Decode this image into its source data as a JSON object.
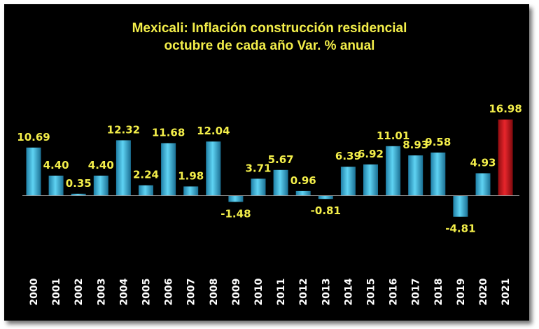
{
  "chart_data": {
    "type": "bar",
    "title_lines": [
      "Mexicali: Inflación construcción residencial",
      "octubre de cada año Var. % anual"
    ],
    "categories": [
      "2000",
      "2001",
      "2002",
      "2003",
      "2004",
      "2005",
      "2006",
      "2007",
      "2008",
      "2009",
      "2010",
      "2011",
      "2012",
      "2013",
      "2014",
      "2015",
      "2016",
      "2017",
      "2018",
      "2019",
      "2020",
      "2021"
    ],
    "values": [
      10.69,
      4.4,
      0.35,
      4.4,
      12.32,
      2.24,
      11.68,
      1.98,
      12.04,
      -1.48,
      3.71,
      5.67,
      0.96,
      -0.81,
      6.39,
      6.92,
      11.01,
      8.93,
      9.58,
      -4.81,
      4.93,
      16.98
    ],
    "labels": [
      "10.69",
      "4.40",
      "0.35",
      "4.40",
      "12.32",
      "2.24",
      "11.68",
      "1.98",
      "12.04",
      "-1.48",
      "3.71",
      "5.67",
      "0.96",
      "-0.81",
      "6.39",
      "6.92",
      "11.01",
      "8.93",
      "9.58",
      "-4.81",
      "4.93",
      "16.98"
    ],
    "highlight_index": 21,
    "colors": {
      "background": "#000000",
      "bar": "#3fb8dc",
      "bar_highlight": "#d9141b",
      "label": "#f4ef4a",
      "title": "#f4ef4a",
      "axis_text": "#ffffff"
    },
    "xlabel": "",
    "ylabel": "",
    "grid": false,
    "legend": "none"
  }
}
